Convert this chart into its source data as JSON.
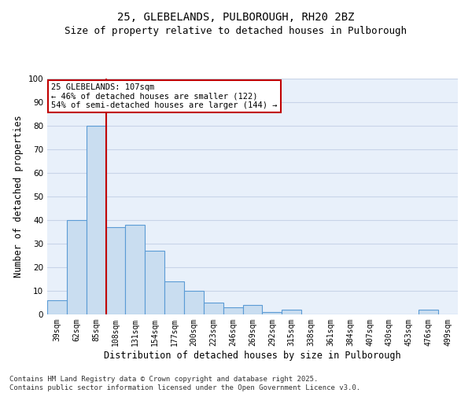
{
  "title1": "25, GLEBELANDS, PULBOROUGH, RH20 2BZ",
  "title2": "Size of property relative to detached houses in Pulborough",
  "xlabel": "Distribution of detached houses by size in Pulborough",
  "ylabel": "Number of detached properties",
  "categories": [
    "39sqm",
    "62sqm",
    "85sqm",
    "108sqm",
    "131sqm",
    "154sqm",
    "177sqm",
    "200sqm",
    "223sqm",
    "246sqm",
    "269sqm",
    "292sqm",
    "315sqm",
    "338sqm",
    "361sqm",
    "384sqm",
    "407sqm",
    "430sqm",
    "453sqm",
    "476sqm",
    "499sqm"
  ],
  "values": [
    6,
    40,
    80,
    37,
    38,
    27,
    14,
    10,
    5,
    3,
    4,
    1,
    2,
    0,
    0,
    0,
    0,
    0,
    0,
    2,
    0
  ],
  "bar_color": "#c9ddf0",
  "bar_edge_color": "#5b9bd5",
  "vline_x": 3.0,
  "vline_color": "#c00000",
  "annotation_line1": "25 GLEBELANDS: 107sqm",
  "annotation_line2": "← 46% of detached houses are smaller (122)",
  "annotation_line3": "54% of semi-detached houses are larger (144) →",
  "annotation_box_color": "#ffffff",
  "annotation_box_edge": "#c00000",
  "ylim": [
    0,
    100
  ],
  "yticks": [
    0,
    10,
    20,
    30,
    40,
    50,
    60,
    70,
    80,
    90,
    100
  ],
  "grid_color": "#c8d4e8",
  "background_color": "#e8f0fa",
  "footnote": "Contains HM Land Registry data © Crown copyright and database right 2025.\nContains public sector information licensed under the Open Government Licence v3.0.",
  "title1_fontsize": 10,
  "title2_fontsize": 9,
  "tick_fontsize": 7,
  "label_fontsize": 8.5,
  "annotation_fontsize": 7.5,
  "footnote_fontsize": 6.5
}
